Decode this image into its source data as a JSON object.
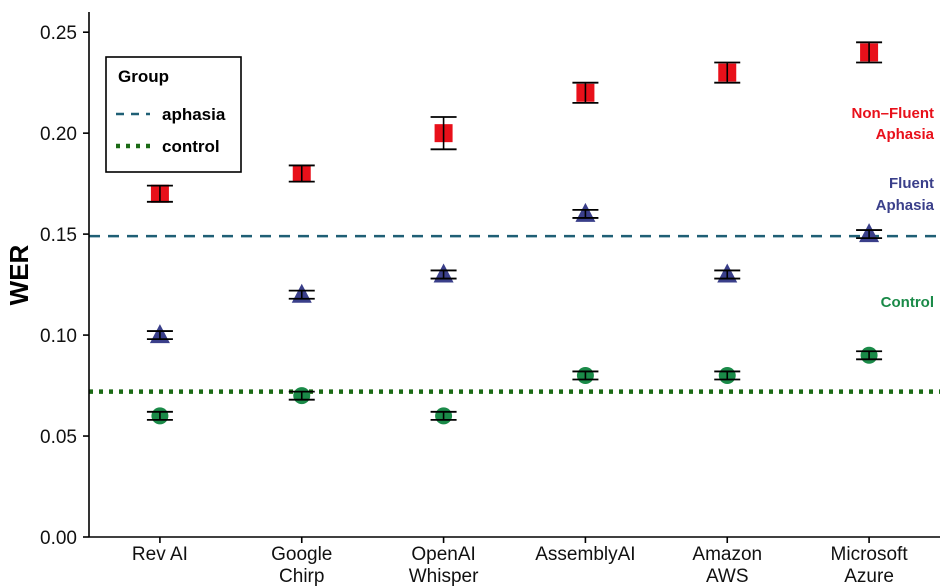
{
  "chart_data": {
    "type": "scatter",
    "ylabel": "WER",
    "xlabel": "",
    "ylim": [
      0,
      0.26
    ],
    "yticks": [
      "0.00",
      "0.05",
      "0.10",
      "0.15",
      "0.20",
      "0.25"
    ],
    "categories": [
      [
        "Rev AI"
      ],
      [
        "Google",
        "Chirp"
      ],
      [
        "OpenAI",
        "Whisper"
      ],
      [
        "AssemblyAI"
      ],
      [
        "Amazon",
        "AWS"
      ],
      [
        "Microsoft",
        "Azure"
      ]
    ],
    "series": [
      {
        "label_lines": [
          "Non–Fluent",
          "Aphasia"
        ],
        "marker": "square",
        "color": "#e8101a",
        "values": [
          0.17,
          0.18,
          0.2,
          0.22,
          0.23,
          0.24
        ],
        "err_low": [
          0.166,
          0.176,
          0.192,
          0.215,
          0.225,
          0.235
        ],
        "err_high": [
          0.174,
          0.184,
          0.208,
          0.225,
          0.235,
          0.245
        ]
      },
      {
        "label_lines": [
          "Fluent",
          "Aphasia"
        ],
        "marker": "triangle",
        "color": "#3a3f8a",
        "values": [
          0.1,
          0.12,
          0.13,
          0.16,
          0.13,
          0.15
        ],
        "err_low": [
          0.098,
          0.118,
          0.128,
          0.158,
          0.128,
          0.148
        ],
        "err_high": [
          0.102,
          0.122,
          0.132,
          0.162,
          0.132,
          0.152
        ]
      },
      {
        "label_lines": [
          "Control"
        ],
        "marker": "circle",
        "color": "#1a8a48",
        "values": [
          0.06,
          0.07,
          0.06,
          0.08,
          0.08,
          0.09
        ],
        "err_low": [
          0.058,
          0.068,
          0.058,
          0.078,
          0.078,
          0.088
        ],
        "err_high": [
          0.062,
          0.072,
          0.062,
          0.082,
          0.082,
          0.092
        ]
      }
    ],
    "reference_lines": [
      {
        "name": "aphasia",
        "value": 0.149,
        "style": "dashed",
        "color": "#1f5f75"
      },
      {
        "name": "control",
        "value": 0.072,
        "style": "dotted",
        "color": "#1a6a14"
      }
    ],
    "legend": {
      "title": "Group",
      "position": "top-left",
      "entries": [
        "aphasia",
        "control"
      ]
    },
    "grid": false
  }
}
